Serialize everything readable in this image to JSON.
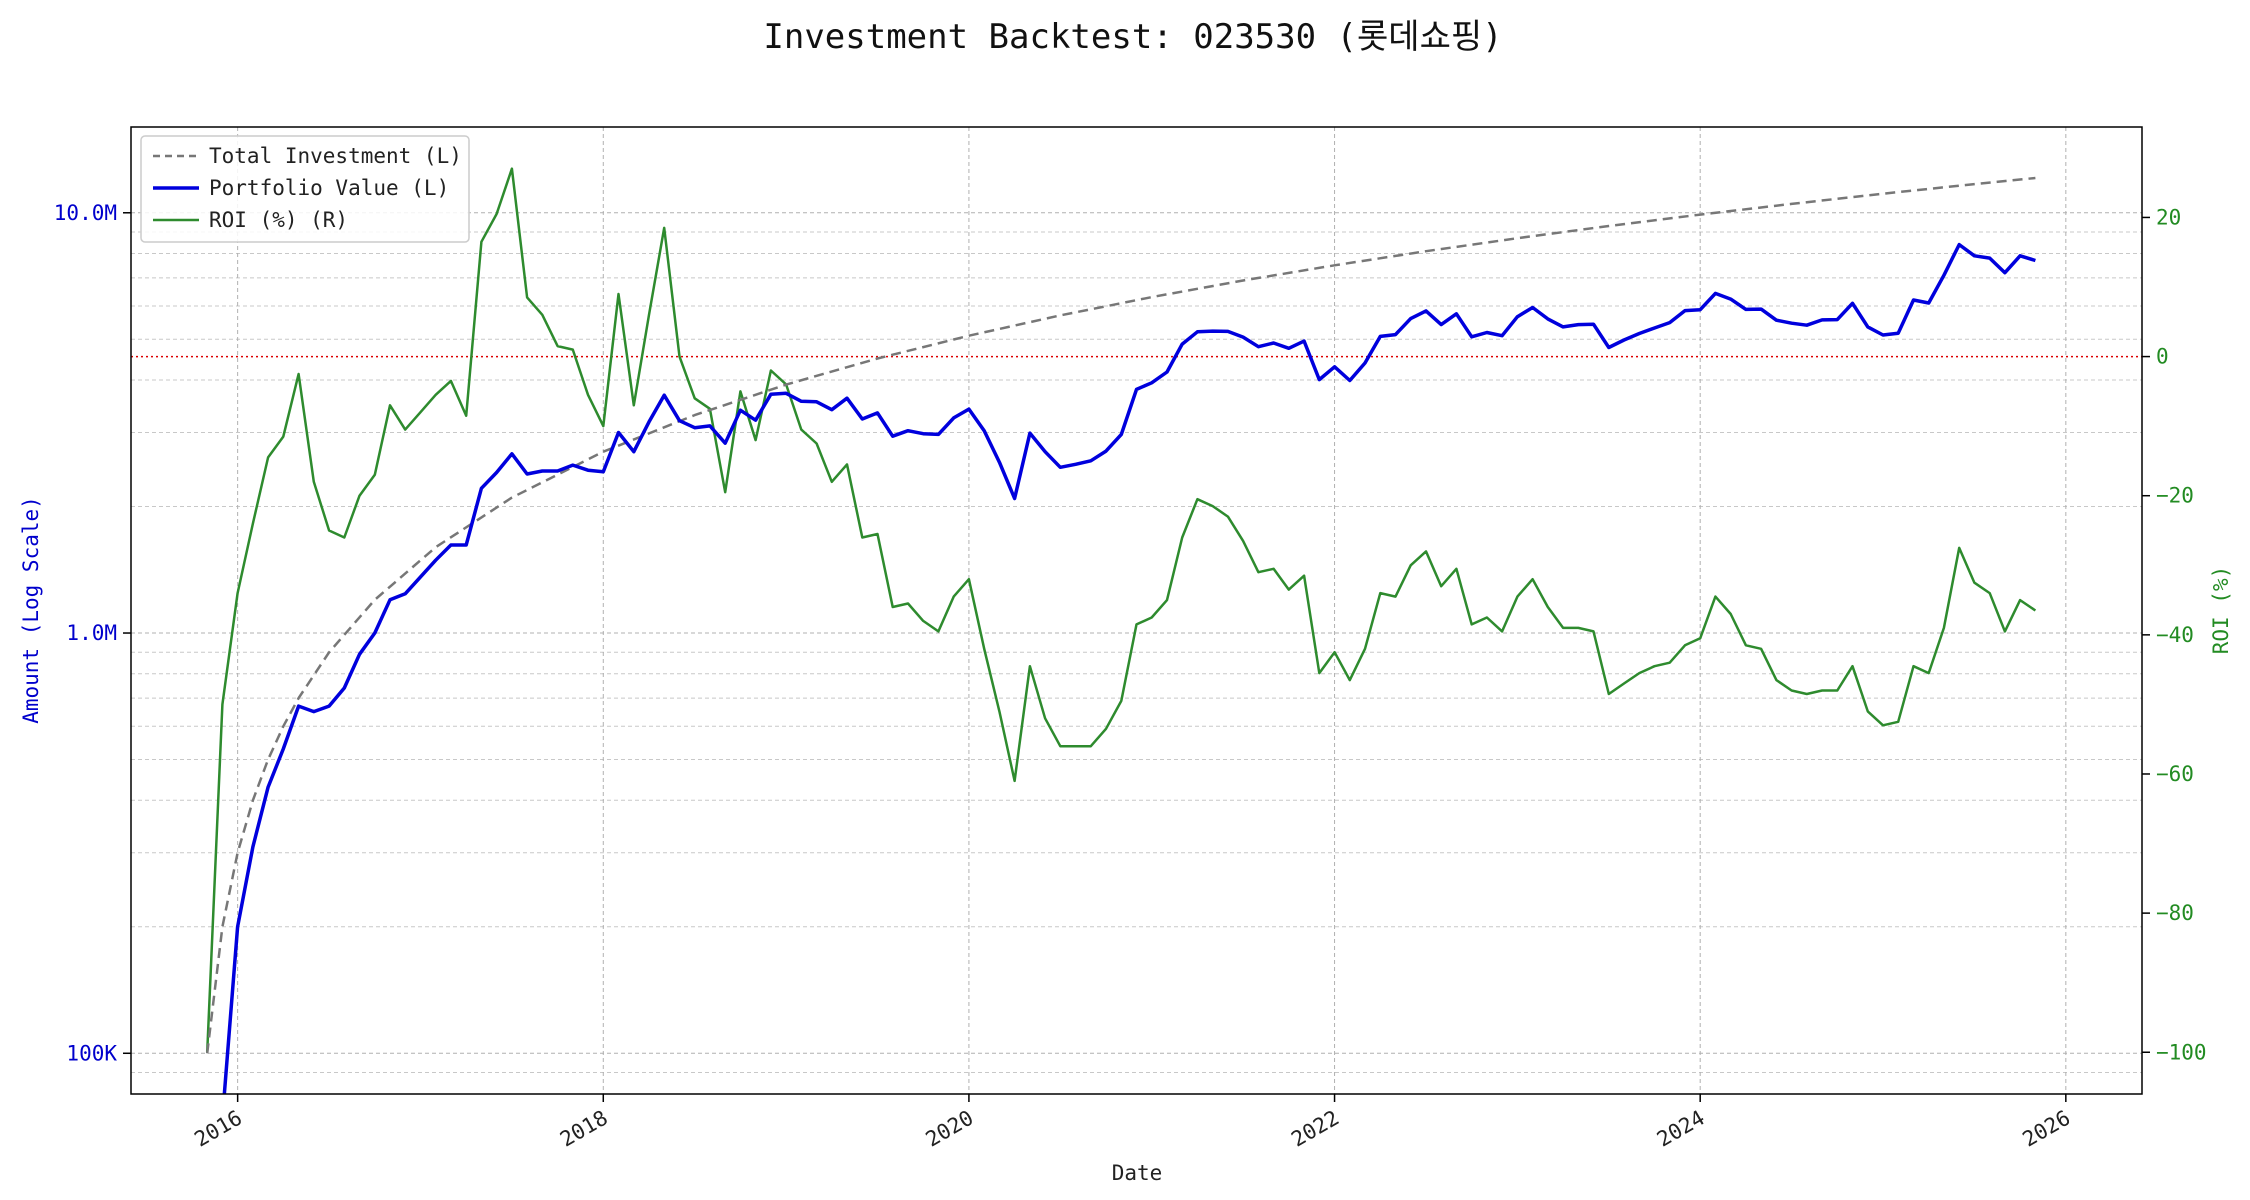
{
  "chart_data": {
    "type": "line",
    "title": "Investment Backtest: 023530 (롯데쇼핑)",
    "xlabel": "Date",
    "ylabel_left": "Amount (Log Scale)",
    "ylabel_right": "ROI (%)",
    "x_ticks": [
      "2016",
      "2018",
      "2020",
      "2022",
      "2024",
      "2026"
    ],
    "y_left_ticks": [
      "100K",
      "1.0M",
      "10.0M"
    ],
    "y_right_ticks": [
      "20",
      "0",
      "−20",
      "−40",
      "−60",
      "−80",
      "−100"
    ],
    "y_left_scale": "log",
    "y_left_range": [
      80000,
      16000000
    ],
    "y_right_range": [
      -106,
      33
    ],
    "x_range": [
      "2015-06",
      "2026-06"
    ],
    "grid": true,
    "legend_position": "top-left",
    "reference_line": {
      "axis": "right",
      "value": 0,
      "color": "#dd0000",
      "style": "dotted"
    },
    "colors": {
      "total_investment": "#777777",
      "portfolio_value": "#0000dd",
      "roi": "#2e8b2e",
      "left_axis": "#0000cc",
      "right_axis": "#228b22"
    },
    "series": [
      {
        "name": "Total Investment (L)",
        "axis": "left",
        "style": "dashed",
        "points": [
          [
            "2015-11",
            100000
          ],
          [
            "2015-12",
            200000
          ],
          [
            "2016-01",
            300000
          ],
          [
            "2016-02",
            400000
          ],
          [
            "2016-03",
            500000
          ],
          [
            "2016-04",
            600000
          ],
          [
            "2016-05",
            700000
          ],
          [
            "2016-07",
            900000
          ],
          [
            "2016-10",
            1200000
          ],
          [
            "2017-02",
            1600000
          ],
          [
            "2017-07",
            2100000
          ],
          [
            "2018-01",
            2700000
          ],
          [
            "2018-07",
            3300000
          ],
          [
            "2019-01",
            3900000
          ],
          [
            "2019-07",
            4500000
          ],
          [
            "2020-01",
            5100000
          ],
          [
            "2020-07",
            5700000
          ],
          [
            "2021-01",
            6300000
          ],
          [
            "2021-07",
            6900000
          ],
          [
            "2022-01",
            7500000
          ],
          [
            "2022-07",
            8100000
          ],
          [
            "2023-01",
            8700000
          ],
          [
            "2023-07",
            9300000
          ],
          [
            "2024-01",
            9900000
          ],
          [
            "2024-07",
            10500000
          ],
          [
            "2025-01",
            11100000
          ],
          [
            "2025-07",
            11700000
          ],
          [
            "2025-11",
            12100000
          ]
        ]
      },
      {
        "name": "Portfolio Value (L)",
        "axis": "left",
        "style": "solid",
        "points": [
          [
            "2015-12",
            70000
          ],
          [
            "2016-01",
            200000
          ],
          [
            "2016-02",
            310000
          ],
          [
            "2016-03",
            430000
          ],
          [
            "2016-04",
            530000
          ],
          [
            "2016-05",
            670000
          ],
          [
            "2016-06",
            650000
          ],
          [
            "2016-07",
            670000
          ],
          [
            "2016-08",
            740000
          ],
          [
            "2016-09",
            890000
          ],
          [
            "2016-10",
            1000000
          ],
          [
            "2016-11",
            1200000
          ],
          [
            "2016-12",
            1240000
          ],
          [
            "2017-01",
            1360000
          ],
          [
            "2017-02",
            1490000
          ],
          [
            "2017-03",
            1620000
          ],
          [
            "2017-04",
            1620000
          ],
          [
            "2017-05",
            2210000
          ],
          [
            "2017-06",
            2410000
          ],
          [
            "2017-07",
            2670000
          ],
          [
            "2017-08",
            2390000
          ],
          [
            "2017-09",
            2430000
          ],
          [
            "2017-10",
            2430000
          ],
          [
            "2017-11",
            2510000
          ],
          [
            "2017-12",
            2440000
          ],
          [
            "2018-01",
            2420000
          ],
          [
            "2018-02",
            3000000
          ],
          [
            "2018-03",
            2700000
          ],
          [
            "2018-04",
            3180000
          ],
          [
            "2018-05",
            3680000
          ],
          [
            "2018-06",
            3200000
          ],
          [
            "2018-07",
            3080000
          ],
          [
            "2018-08",
            3110000
          ],
          [
            "2018-09",
            2830000
          ],
          [
            "2018-10",
            3390000
          ],
          [
            "2018-11",
            3210000
          ],
          [
            "2018-12",
            3700000
          ],
          [
            "2019-01",
            3720000
          ],
          [
            "2019-02",
            3560000
          ],
          [
            "2019-03",
            3550000
          ],
          [
            "2019-04",
            3400000
          ],
          [
            "2019-05",
            3620000
          ],
          [
            "2019-06",
            3230000
          ],
          [
            "2019-07",
            3340000
          ],
          [
            "2019-08",
            2940000
          ],
          [
            "2019-09",
            3030000
          ],
          [
            "2019-10",
            2980000
          ],
          [
            "2019-11",
            2970000
          ],
          [
            "2019-12",
            3250000
          ],
          [
            "2020-01",
            3410000
          ],
          [
            "2020-02",
            3030000
          ],
          [
            "2020-03",
            2550000
          ],
          [
            "2020-04",
            2090000
          ],
          [
            "2020-05",
            2990000
          ],
          [
            "2020-06",
            2700000
          ],
          [
            "2020-07",
            2480000
          ],
          [
            "2020-08",
            2520000
          ],
          [
            "2020-09",
            2570000
          ],
          [
            "2020-10",
            2710000
          ],
          [
            "2020-11",
            2970000
          ],
          [
            "2020-12",
            3800000
          ],
          [
            "2021-01",
            3940000
          ],
          [
            "2021-02",
            4180000
          ],
          [
            "2021-03",
            4870000
          ],
          [
            "2021-04",
            5210000
          ],
          [
            "2021-05",
            5230000
          ],
          [
            "2021-06",
            5220000
          ],
          [
            "2021-07",
            5060000
          ],
          [
            "2021-08",
            4800000
          ],
          [
            "2021-09",
            4900000
          ],
          [
            "2021-10",
            4760000
          ],
          [
            "2021-11",
            4950000
          ],
          [
            "2021-12",
            4010000
          ],
          [
            "2022-01",
            4300000
          ],
          [
            "2022-02",
            3990000
          ],
          [
            "2022-03",
            4390000
          ],
          [
            "2022-04",
            5080000
          ],
          [
            "2022-05",
            5130000
          ],
          [
            "2022-06",
            5600000
          ],
          [
            "2022-07",
            5840000
          ],
          [
            "2022-08",
            5420000
          ],
          [
            "2022-09",
            5750000
          ],
          [
            "2022-10",
            5070000
          ],
          [
            "2022-11",
            5190000
          ],
          [
            "2022-12",
            5100000
          ],
          [
            "2023-01",
            5660000
          ],
          [
            "2023-02",
            5950000
          ],
          [
            "2023-03",
            5590000
          ],
          [
            "2023-04",
            5350000
          ],
          [
            "2023-05",
            5420000
          ],
          [
            "2023-06",
            5430000
          ],
          [
            "2023-07",
            4780000
          ],
          [
            "2023-08",
            4980000
          ],
          [
            "2023-09",
            5160000
          ],
          [
            "2023-10",
            5320000
          ],
          [
            "2023-11",
            5480000
          ],
          [
            "2023-12",
            5850000
          ],
          [
            "2024-01",
            5880000
          ],
          [
            "2024-02",
            6430000
          ],
          [
            "2024-03",
            6230000
          ],
          [
            "2024-04",
            5890000
          ],
          [
            "2024-05",
            5900000
          ],
          [
            "2024-06",
            5550000
          ],
          [
            "2024-07",
            5460000
          ],
          [
            "2024-08",
            5400000
          ],
          [
            "2024-09",
            5560000
          ],
          [
            "2024-10",
            5570000
          ],
          [
            "2024-11",
            6090000
          ],
          [
            "2024-12",
            5350000
          ],
          [
            "2025-01",
            5120000
          ],
          [
            "2025-02",
            5170000
          ],
          [
            "2025-03",
            6200000
          ],
          [
            "2025-04",
            6100000
          ],
          [
            "2025-05",
            7100000
          ],
          [
            "2025-06",
            8400000
          ],
          [
            "2025-07",
            7900000
          ],
          [
            "2025-08",
            7800000
          ],
          [
            "2025-09",
            7200000
          ],
          [
            "2025-10",
            7900000
          ],
          [
            "2025-11",
            7700000
          ]
        ]
      },
      {
        "name": "ROI (%) (R)",
        "axis": "right",
        "style": "solid",
        "points": [
          [
            "2015-11",
            -100
          ],
          [
            "2015-12",
            -50
          ],
          [
            "2016-01",
            -34
          ],
          [
            "2016-02",
            -24
          ],
          [
            "2016-03",
            -14.5
          ],
          [
            "2016-04",
            -11.5
          ],
          [
            "2016-05",
            -2.5
          ],
          [
            "2016-06",
            -18
          ],
          [
            "2016-07",
            -25
          ],
          [
            "2016-08",
            -26
          ],
          [
            "2016-09",
            -20
          ],
          [
            "2016-10",
            -17
          ],
          [
            "2016-11",
            -7
          ],
          [
            "2016-12",
            -10.5
          ],
          [
            "2017-01",
            -8
          ],
          [
            "2017-02",
            -5.5
          ],
          [
            "2017-03",
            -3.5
          ],
          [
            "2017-04",
            -8.5
          ],
          [
            "2017-05",
            16.5
          ],
          [
            "2017-06",
            20.5
          ],
          [
            "2017-07",
            27
          ],
          [
            "2017-08",
            8.5
          ],
          [
            "2017-09",
            6
          ],
          [
            "2017-10",
            1.5
          ],
          [
            "2017-11",
            1
          ],
          [
            "2017-12",
            -5.5
          ],
          [
            "2018-01",
            -10
          ],
          [
            "2018-02",
            9
          ],
          [
            "2018-03",
            -7
          ],
          [
            "2018-04",
            6
          ],
          [
            "2018-05",
            18.5
          ],
          [
            "2018-06",
            0
          ],
          [
            "2018-07",
            -6
          ],
          [
            "2018-08",
            -7.5
          ],
          [
            "2018-09",
            -19.5
          ],
          [
            "2018-10",
            -5
          ],
          [
            "2018-11",
            -12
          ],
          [
            "2018-12",
            -2
          ],
          [
            "2019-01",
            -4
          ],
          [
            "2019-02",
            -10.5
          ],
          [
            "2019-03",
            -12.5
          ],
          [
            "2019-04",
            -18
          ],
          [
            "2019-05",
            -15.5
          ],
          [
            "2019-06",
            -26
          ],
          [
            "2019-07",
            -25.5
          ],
          [
            "2019-08",
            -36
          ],
          [
            "2019-09",
            -35.5
          ],
          [
            "2019-10",
            -38
          ],
          [
            "2019-11",
            -39.5
          ],
          [
            "2019-12",
            -34.5
          ],
          [
            "2020-01",
            -32
          ],
          [
            "2020-02",
            -42
          ],
          [
            "2020-03",
            -51
          ],
          [
            "2020-04",
            -61
          ],
          [
            "2020-05",
            -44.5
          ],
          [
            "2020-06",
            -52
          ],
          [
            "2020-07",
            -56
          ],
          [
            "2020-08",
            -56
          ],
          [
            "2020-09",
            -56
          ],
          [
            "2020-10",
            -53.5
          ],
          [
            "2020-11",
            -49.5
          ],
          [
            "2020-12",
            -38.5
          ],
          [
            "2021-01",
            -37.5
          ],
          [
            "2021-02",
            -35
          ],
          [
            "2021-03",
            -26
          ],
          [
            "2021-04",
            -20.5
          ],
          [
            "2021-05",
            -21.5
          ],
          [
            "2021-06",
            -23
          ],
          [
            "2021-07",
            -26.5
          ],
          [
            "2021-08",
            -31
          ],
          [
            "2021-09",
            -30.5
          ],
          [
            "2021-10",
            -33.5
          ],
          [
            "2021-11",
            -31.5
          ],
          [
            "2021-12",
            -45.5
          ],
          [
            "2022-01",
            -42.5
          ],
          [
            "2022-02",
            -46.5
          ],
          [
            "2022-03",
            -42
          ],
          [
            "2022-04",
            -34
          ],
          [
            "2022-05",
            -34.5
          ],
          [
            "2022-06",
            -30
          ],
          [
            "2022-07",
            -28
          ],
          [
            "2022-08",
            -33
          ],
          [
            "2022-09",
            -30.5
          ],
          [
            "2022-10",
            -38.5
          ],
          [
            "2022-11",
            -37.5
          ],
          [
            "2022-12",
            -39.5
          ],
          [
            "2023-01",
            -34.5
          ],
          [
            "2023-02",
            -32
          ],
          [
            "2023-03",
            -36
          ],
          [
            "2023-04",
            -39
          ],
          [
            "2023-05",
            -39
          ],
          [
            "2023-06",
            -39.5
          ],
          [
            "2023-07",
            -48.5
          ],
          [
            "2023-08",
            -47
          ],
          [
            "2023-09",
            -45.5
          ],
          [
            "2023-10",
            -44.5
          ],
          [
            "2023-11",
            -44
          ],
          [
            "2023-12",
            -41.5
          ],
          [
            "2024-01",
            -40.5
          ],
          [
            "2024-02",
            -34.5
          ],
          [
            "2024-03",
            -37
          ],
          [
            "2024-04",
            -41.5
          ],
          [
            "2024-05",
            -42
          ],
          [
            "2024-06",
            -46.5
          ],
          [
            "2024-07",
            -48
          ],
          [
            "2024-08",
            -48.5
          ],
          [
            "2024-09",
            -48
          ],
          [
            "2024-10",
            -48
          ],
          [
            "2024-11",
            -44.5
          ],
          [
            "2024-12",
            -51
          ],
          [
            "2025-01",
            -53
          ],
          [
            "2025-02",
            -52.5
          ],
          [
            "2025-03",
            -44.5
          ],
          [
            "2025-04",
            -45.5
          ],
          [
            "2025-05",
            -39
          ],
          [
            "2025-06",
            -27.5
          ],
          [
            "2025-07",
            -32.5
          ],
          [
            "2025-08",
            -34
          ],
          [
            "2025-09",
            -39.5
          ],
          [
            "2025-10",
            -35
          ],
          [
            "2025-11",
            -36.5
          ]
        ]
      }
    ]
  }
}
